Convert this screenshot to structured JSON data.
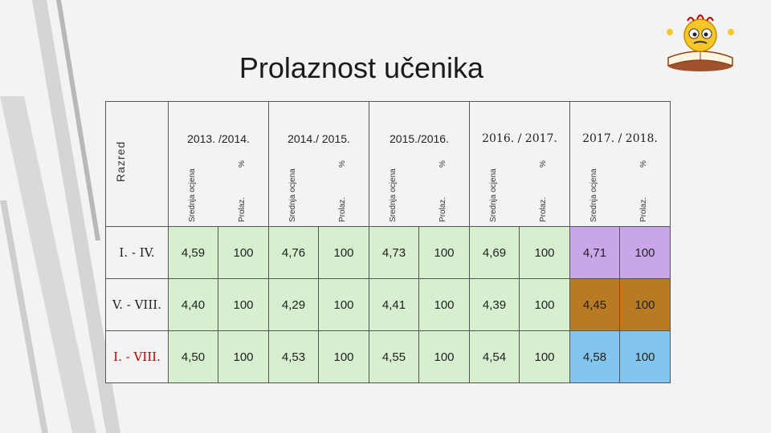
{
  "title": "Prolaznost učenika",
  "razred_label": "Razred",
  "years": [
    {
      "label": "2013. /2014.",
      "sub1": "Srednja ocjena",
      "sub2": "%",
      "sub3": "Prolaz."
    },
    {
      "label": "2014./ 2015.",
      "sub1": "Srednja ocjena",
      "sub2": "%",
      "sub3": "Prolaz."
    },
    {
      "label": "2015./2016.",
      "sub1": "Srednja ocjena",
      "sub2": "%",
      "sub3": "Prolaz."
    },
    {
      "label": "2016. / 2017.",
      "sub1": "Srednja ocjena",
      "sub2": "%",
      "sub3": "Prolaz."
    },
    {
      "label": "2017. / 2018.",
      "sub1": "Srednja ocjena",
      "sub2": "%",
      "sub3": "Prolaz."
    }
  ],
  "rows": [
    {
      "label": "I. - IV.",
      "values": [
        "4,59",
        "100",
        "4,76",
        "100",
        "4,73",
        "100",
        "4,69",
        "100",
        "4,71",
        "100"
      ]
    },
    {
      "label": "V. - VIII.",
      "values": [
        "4,40",
        "100",
        "4,29",
        "100",
        "4,41",
        "100",
        "4,39",
        "100",
        "4,45",
        "100"
      ]
    },
    {
      "label": "I. - VIII.",
      "values": [
        "4,50",
        "100",
        "4,53",
        "100",
        "4,55",
        "100",
        "4,54",
        "100",
        "4,58",
        "100"
      ]
    }
  ],
  "colors": {
    "cell_green": "#d7eecf",
    "highlight_row1": "#c9a6e8",
    "highlight_row2": "#b87a22",
    "highlight_row3": "#82c6ef",
    "label_red": "#c00000"
  },
  "icons": [
    "mascot-reading-book-icon"
  ]
}
